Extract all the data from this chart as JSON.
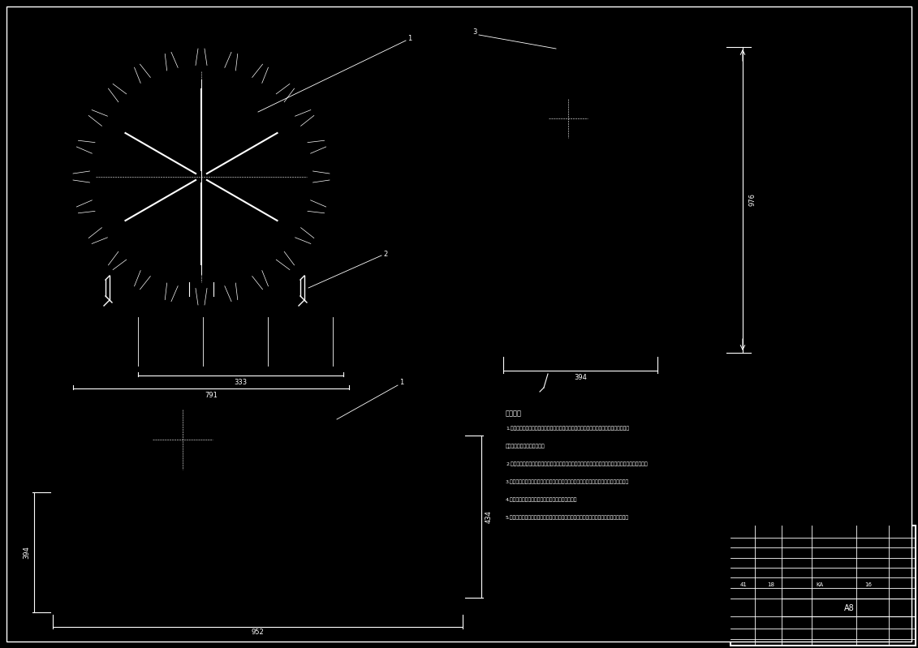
{
  "bg_color": "#000000",
  "line_color": "#ffffff",
  "fig_width": 11.31,
  "fig_height": 7.99,
  "notes_title": "技术要求",
  "notes": [
    "1.输入装配时零系部件（包括外购件、外協件），均必须具有检验合格证明方能进行装配。",
    "其他装置方向及其安装设备。",
    "2.零件在装配前必须清理和清洗干净，不得有毛刺、飞边、氧化皮、锈蚀、切屑、砂粒、灰尘和油污等。",
    "3.装配螺统紧固件，拧紧时应套配合尺寸，检测是否配合良好十及相关尺度螺统拧紧情况。",
    "4.装配过程中零件不允许磕碍、划伤、锈蚀和脏污。",
    "5.运转、总装机组装图时，严禁行磁或调用不合规的规范磁场手，安置后调试，试验功能。"
  ],
  "dim_333": "333",
  "dim_791": "791",
  "dim_394": "394",
  "dim_976": "976",
  "dim_952": "952",
  "dim_434": "434",
  "dim_394b": "394",
  "label_1a": "1",
  "label_2": "2",
  "label_3": "3",
  "label_1b": "1"
}
